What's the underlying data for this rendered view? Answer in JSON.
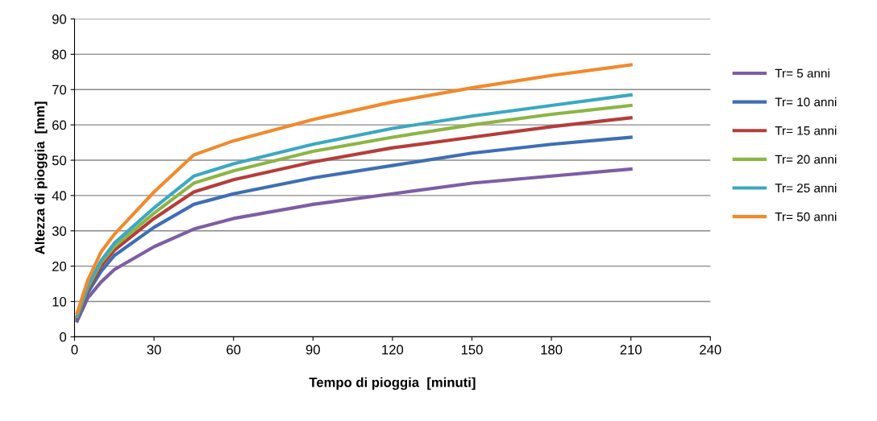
{
  "chart_data": {
    "type": "line",
    "xlabel": "Tempo di pioggia  [minuti]",
    "ylabel": "Altezza di pioggia  [mm]",
    "x": [
      1,
      5,
      10,
      15,
      30,
      45,
      60,
      90,
      120,
      150,
      180,
      210
    ],
    "series": [
      {
        "name": "Tr= 5 anni",
        "color": "#7d5ea3",
        "values": [
          4.5,
          11,
          15.5,
          19,
          25.5,
          30.5,
          33.5,
          37.5,
          40.5,
          43.5,
          45.5,
          47.5
        ]
      },
      {
        "name": "Tr= 10 anni",
        "color": "#3f6eb3",
        "values": [
          5,
          12.5,
          18.5,
          23,
          31,
          37.5,
          40.5,
          45,
          48.5,
          52,
          54.5,
          56.5
        ]
      },
      {
        "name": "Tr= 15 anni",
        "color": "#b43d3a",
        "values": [
          5.5,
          13.5,
          20,
          24.5,
          33.5,
          41,
          44.5,
          49.5,
          53.5,
          56.5,
          59.5,
          62
        ]
      },
      {
        "name": "Tr= 20 anni",
        "color": "#8cb545",
        "values": [
          5.8,
          14,
          21,
          25.5,
          35,
          43.5,
          47,
          52.5,
          56.5,
          60,
          63,
          65.5
        ]
      },
      {
        "name": "Tr= 25 anni",
        "color": "#3ca8c1",
        "values": [
          6,
          14.5,
          21.5,
          26.5,
          36.5,
          45.5,
          49,
          54.5,
          59,
          62.5,
          65.5,
          68.5
        ]
      },
      {
        "name": "Tr= 50 anni",
        "color": "#f18a2c",
        "values": [
          6.8,
          16,
          24,
          29,
          41,
          51.5,
          55.5,
          61.5,
          66.5,
          70.5,
          74,
          77
        ]
      }
    ],
    "xlim": [
      0,
      240
    ],
    "xticks": [
      0,
      30,
      60,
      90,
      120,
      150,
      180,
      210,
      240
    ],
    "ylim": [
      0,
      90
    ],
    "yticks": [
      0,
      10,
      20,
      30,
      40,
      50,
      60,
      70,
      80,
      90
    ],
    "grid": "y",
    "legend": "right",
    "marker": "none",
    "line_style": "solid"
  }
}
